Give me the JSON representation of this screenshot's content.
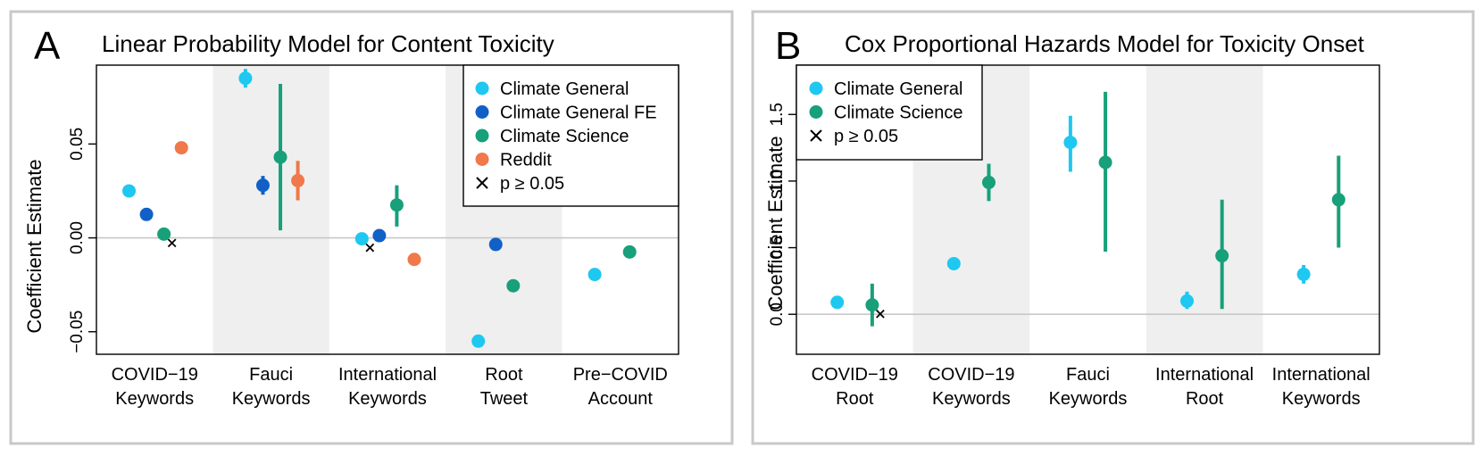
{
  "panels": [
    {
      "letter": "A",
      "title": "Linear Probability Model for Content Toxicity",
      "ylabel": "Coefficient Estimate"
    },
    {
      "letter": "B",
      "title": "Cox Proportional Hazards Model for Toxicity Onset",
      "ylabel": "Coefficient Estimate"
    }
  ],
  "colors": {
    "Climate General": "#1ec8f0",
    "Climate General FE": "#1060c8",
    "Climate Science": "#17a07a",
    "Reddit": "#f0784a"
  },
  "chart_data": [
    {
      "type": "scatter",
      "title": "Linear Probability Model for Content Toxicity",
      "ylabel": "Coefficient Estimate",
      "ylim": [
        -0.062,
        0.092
      ],
      "yticks": [
        -0.05,
        0.0,
        0.05
      ],
      "ytick_labels": [
        "-0.05",
        "0.00",
        "0.05"
      ],
      "categories": [
        "COVID-19 Keywords",
        "Fauci Keywords",
        "International Keywords",
        "Root Tweet",
        "Pre-COVID Account"
      ],
      "category_labels": [
        [
          "COVID−19",
          "Keywords"
        ],
        [
          "Fauci",
          "Keywords"
        ],
        [
          "International",
          "Keywords"
        ],
        [
          "Root",
          "Tweet"
        ],
        [
          "Pre−COVID",
          "Account"
        ]
      ],
      "shaded_categories": [
        1,
        3
      ],
      "legend": [
        "Climate General",
        "Climate General FE",
        "Climate Science",
        "Reddit",
        "p ≥ 0.05"
      ],
      "legend_position": "top-right",
      "points": [
        {
          "series": "Climate General",
          "category": 0,
          "offset": -0.22,
          "y": 0.025,
          "lo": 0.024,
          "hi": 0.026,
          "nonsig": false
        },
        {
          "series": "Climate General FE",
          "category": 0,
          "offset": -0.07,
          "y": 0.0125,
          "lo": 0.0115,
          "hi": 0.0135,
          "nonsig": false
        },
        {
          "series": "Climate Science",
          "category": 0,
          "offset": 0.08,
          "y": 0.002,
          "lo": 0.001,
          "hi": 0.003,
          "nonsig": true
        },
        {
          "series": "Reddit",
          "category": 0,
          "offset": 0.23,
          "y": 0.048,
          "lo": 0.047,
          "hi": 0.049,
          "nonsig": false
        },
        {
          "series": "Climate General",
          "category": 1,
          "offset": -0.22,
          "y": 0.085,
          "lo": 0.08,
          "hi": 0.09,
          "nonsig": false
        },
        {
          "series": "Climate General FE",
          "category": 1,
          "offset": -0.07,
          "y": 0.028,
          "lo": 0.023,
          "hi": 0.033,
          "nonsig": false
        },
        {
          "series": "Climate Science",
          "category": 1,
          "offset": 0.08,
          "y": 0.043,
          "lo": 0.004,
          "hi": 0.082,
          "nonsig": false
        },
        {
          "series": "Reddit",
          "category": 1,
          "offset": 0.23,
          "y": 0.0305,
          "lo": 0.02,
          "hi": 0.041,
          "nonsig": false
        },
        {
          "series": "Climate General",
          "category": 2,
          "offset": -0.22,
          "y": -0.0005,
          "lo": -0.0015,
          "hi": 0.0005,
          "nonsig": true
        },
        {
          "series": "Climate General FE",
          "category": 2,
          "offset": -0.07,
          "y": 0.0012,
          "lo": 0.0002,
          "hi": 0.0022,
          "nonsig": false
        },
        {
          "series": "Climate Science",
          "category": 2,
          "offset": 0.08,
          "y": 0.0175,
          "lo": 0.006,
          "hi": 0.028,
          "nonsig": false
        },
        {
          "series": "Reddit",
          "category": 2,
          "offset": 0.23,
          "y": -0.0115,
          "lo": -0.0125,
          "hi": -0.0105,
          "nonsig": false
        },
        {
          "series": "Climate General",
          "category": 3,
          "offset": -0.22,
          "y": -0.055,
          "lo": -0.056,
          "hi": -0.054,
          "nonsig": false
        },
        {
          "series": "Climate General FE",
          "category": 3,
          "offset": -0.07,
          "y": -0.0035,
          "lo": -0.0045,
          "hi": -0.0025,
          "nonsig": false
        },
        {
          "series": "Climate Science",
          "category": 3,
          "offset": 0.08,
          "y": -0.0255,
          "lo": -0.0265,
          "hi": -0.0245,
          "nonsig": false
        },
        {
          "series": "Climate General",
          "category": 4,
          "offset": -0.22,
          "y": -0.0195,
          "lo": -0.0205,
          "hi": -0.0185,
          "nonsig": false
        },
        {
          "series": "Climate Science",
          "category": 4,
          "offset": 0.08,
          "y": -0.0075,
          "lo": -0.0085,
          "hi": -0.0065,
          "nonsig": false
        }
      ]
    },
    {
      "type": "scatter",
      "title": "Cox Proportional Hazards Model for Toxicity Onset",
      "ylabel": "Coefficient Estimate",
      "ylim": [
        -0.3,
        1.87
      ],
      "yticks": [
        0.0,
        0.5,
        1.0,
        1.5
      ],
      "ytick_labels": [
        "0.0",
        "0.5",
        "1.0",
        "1.5"
      ],
      "categories": [
        "COVID-19 Root",
        "COVID-19 Keywords",
        "Fauci Keywords",
        "International Root",
        "International Keywords"
      ],
      "category_labels": [
        [
          "COVID−19",
          "Root"
        ],
        [
          "COVID−19",
          "Keywords"
        ],
        [
          "Fauci",
          "Keywords"
        ],
        [
          "International",
          "Root"
        ],
        [
          "International",
          "Keywords"
        ]
      ],
      "shaded_categories": [
        1,
        3
      ],
      "legend": [
        "Climate General",
        "Climate Science",
        "p ≥ 0.05"
      ],
      "legend_position": "top-left",
      "points": [
        {
          "series": "Climate General",
          "category": 0,
          "offset": -0.15,
          "y": 0.09,
          "lo": 0.08,
          "hi": 0.1,
          "nonsig": false
        },
        {
          "series": "Climate Science",
          "category": 0,
          "offset": 0.15,
          "y": 0.07,
          "lo": -0.09,
          "hi": 0.23,
          "nonsig": true
        },
        {
          "series": "Climate General",
          "category": 1,
          "offset": -0.15,
          "y": 0.38,
          "lo": 0.37,
          "hi": 0.39,
          "nonsig": false
        },
        {
          "series": "Climate Science",
          "category": 1,
          "offset": 0.15,
          "y": 0.99,
          "lo": 0.85,
          "hi": 1.13,
          "nonsig": false
        },
        {
          "series": "Climate General",
          "category": 2,
          "offset": -0.15,
          "y": 1.29,
          "lo": 1.07,
          "hi": 1.49,
          "nonsig": false
        },
        {
          "series": "Climate Science",
          "category": 2,
          "offset": 0.15,
          "y": 1.14,
          "lo": 0.47,
          "hi": 1.67,
          "nonsig": false
        },
        {
          "series": "Climate General",
          "category": 3,
          "offset": -0.15,
          "y": 0.1,
          "lo": 0.04,
          "hi": 0.17,
          "nonsig": false
        },
        {
          "series": "Climate Science",
          "category": 3,
          "offset": 0.15,
          "y": 0.44,
          "lo": 0.04,
          "hi": 0.86,
          "nonsig": false
        },
        {
          "series": "Climate General",
          "category": 4,
          "offset": -0.15,
          "y": 0.3,
          "lo": 0.23,
          "hi": 0.37,
          "nonsig": false
        },
        {
          "series": "Climate Science",
          "category": 4,
          "offset": 0.15,
          "y": 0.86,
          "lo": 0.5,
          "hi": 1.19,
          "nonsig": false
        }
      ]
    }
  ]
}
